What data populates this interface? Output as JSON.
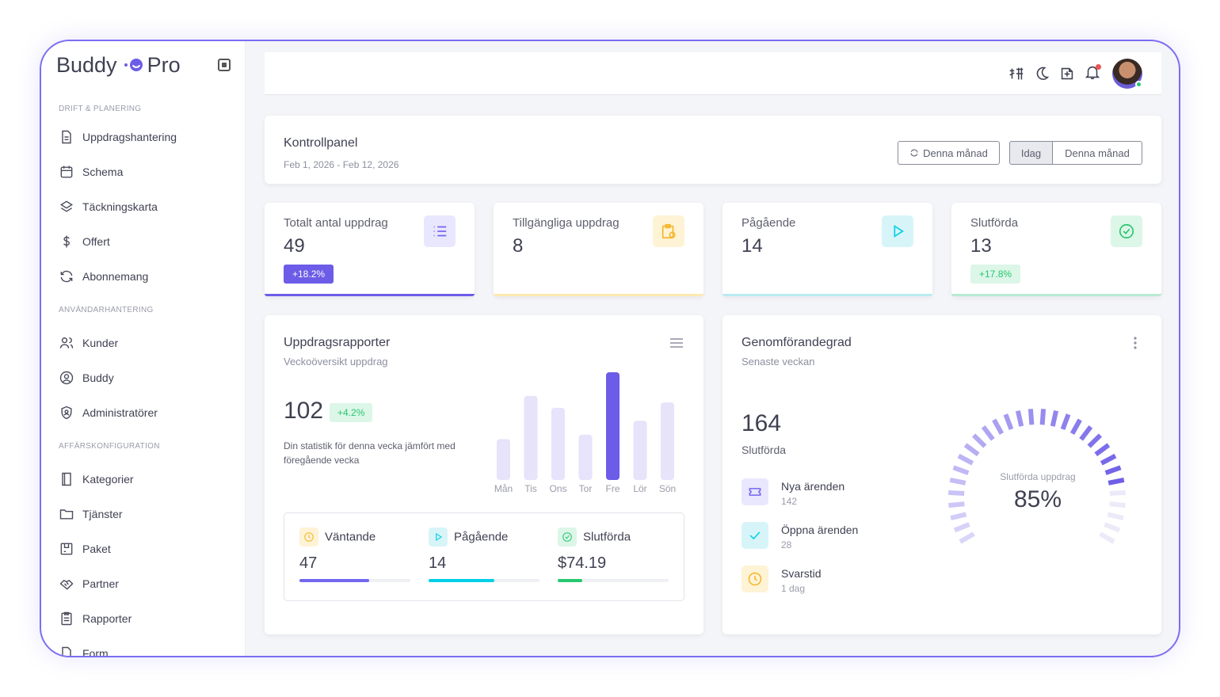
{
  "brand": {
    "name_left": "Buddy",
    "name_right": "Pro"
  },
  "sidebar": {
    "sections": [
      {
        "label": "DRIFT & PLANERING"
      },
      {
        "label": "ANVÄNDARHANTERING"
      },
      {
        "label": "AFFÄRSKONFIGURATION"
      }
    ],
    "items": [
      {
        "label": "Uppdragshantering",
        "icon": "document-icon"
      },
      {
        "label": "Schema",
        "icon": "calendar-icon"
      },
      {
        "label": "Täckningskarta",
        "icon": "layers-icon"
      },
      {
        "label": "Offert",
        "icon": "dollar-icon"
      },
      {
        "label": "Abonnemang",
        "icon": "refresh-icon"
      },
      {
        "label": "Kunder",
        "icon": "users-icon"
      },
      {
        "label": "Buddy",
        "icon": "user-circle-icon"
      },
      {
        "label": "Administratörer",
        "icon": "shield-user-icon"
      },
      {
        "label": "Kategorier",
        "icon": "book-icon"
      },
      {
        "label": "Tjänster",
        "icon": "folder-icon"
      },
      {
        "label": "Paket",
        "icon": "package-icon"
      },
      {
        "label": "Partner",
        "icon": "handshake-icon"
      },
      {
        "label": "Rapporter",
        "icon": "report-icon"
      },
      {
        "label": "Form",
        "icon": "form-icon"
      }
    ]
  },
  "header": {
    "title": "Kontrollpanel",
    "date_range": "Feb 1, 2026 - Feb 12, 2026",
    "refresh_label": "Denna månad",
    "segment_today": "Idag",
    "segment_month": "Denna månad"
  },
  "stats": [
    {
      "label": "Totalt antal uppdrag",
      "value": "49",
      "change": "+18.2%",
      "color": "#7367f0"
    },
    {
      "label": "Tillgängliga uppdrag",
      "value": "8",
      "change": "",
      "color": "#ff9f43"
    },
    {
      "label": "Pågående",
      "value": "14",
      "change": "",
      "color": "#00cfe8"
    },
    {
      "label": "Slutförda",
      "value": "13",
      "change": "+17.8%",
      "color": "#28c76f"
    }
  ],
  "report": {
    "title": "Uppdragsrapporter",
    "subtitle": "Veckoöversikt uppdrag",
    "total": "102",
    "change": "+4.2%",
    "description": "Din statistik för denna vecka jämfört med föregående vecka",
    "breakdown": [
      {
        "label": "Väntande",
        "value": "47",
        "progress": 0.63,
        "color": "#7367f0"
      },
      {
        "label": "Pågående",
        "value": "14",
        "progress": 0.59,
        "color": "#00cfe8"
      },
      {
        "label": "Slutförda",
        "value": "$74.19",
        "progress": 0.22,
        "color": "#28c76f"
      }
    ]
  },
  "chart_data": {
    "type": "bar",
    "categories": [
      "Mån",
      "Tis",
      "Ons",
      "Tor",
      "Fre",
      "Lör",
      "Sön"
    ],
    "values": [
      38,
      78,
      67,
      42,
      100,
      55,
      72
    ],
    "highlight_index": 4,
    "ylim": [
      0,
      100
    ],
    "grid": false
  },
  "completion": {
    "title": "Genomförandegrad",
    "subtitle": "Senaste veckan",
    "total": "164",
    "total_label": "Slutförda",
    "gauge_label": "Slutförda uppdrag",
    "gauge_value": "85%",
    "gauge_fraction": 0.85,
    "tickets": [
      {
        "title": "Nya ärenden",
        "value": "142",
        "icon": "ticket-icon"
      },
      {
        "title": "Öppna ärenden",
        "value": "28",
        "icon": "check-icon"
      },
      {
        "title": "Svarstid",
        "value": "1 dag",
        "icon": "clock-icon"
      }
    ]
  }
}
